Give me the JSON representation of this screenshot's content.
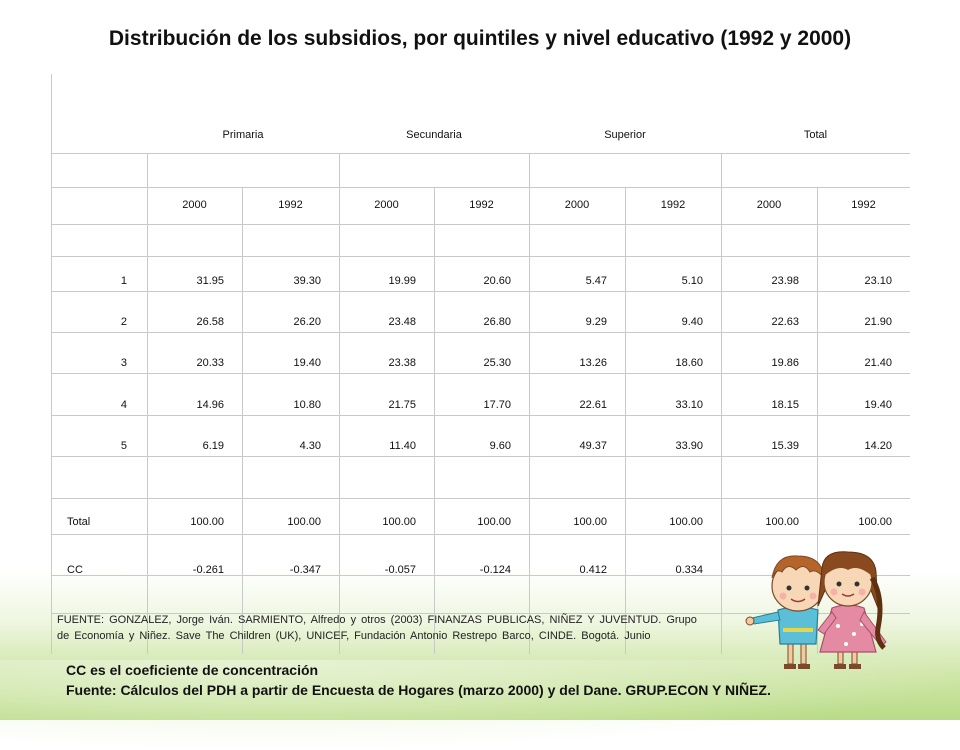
{
  "title": "Distribución de los subsidios, por quintiles y nivel educativo (1992 y 2000)",
  "levels": [
    "Primaria",
    "Secundaria",
    "Superior",
    "Total"
  ],
  "years": [
    "2000",
    "1992",
    "2000",
    "1992",
    "2000",
    "1992",
    "2000",
    "1992"
  ],
  "rows": [
    {
      "label": "1",
      "values": [
        "31.95",
        "39.30",
        "19.99",
        "20.60",
        "5.47",
        "5.10",
        "23.98",
        "23.10"
      ]
    },
    {
      "label": "2",
      "values": [
        "26.58",
        "26.20",
        "23.48",
        "26.80",
        "9.29",
        "9.40",
        "22.63",
        "21.90"
      ]
    },
    {
      "label": "3",
      "values": [
        "20.33",
        "19.40",
        "23.38",
        "25.30",
        "13.26",
        "18.60",
        "19.86",
        "21.40"
      ]
    },
    {
      "label": "4",
      "values": [
        "14.96",
        "10.80",
        "21.75",
        "17.70",
        "22.61",
        "33.10",
        "18.15",
        "19.40"
      ]
    },
    {
      "label": "5",
      "values": [
        "6.19",
        "4.30",
        "11.40",
        "9.60",
        "49.37",
        "33.90",
        "15.39",
        "14.20"
      ]
    },
    {
      "label": "Total",
      "values": [
        "100.00",
        "100.00",
        "100.00",
        "100.00",
        "100.00",
        "100.00",
        "100.00",
        "100.00"
      ]
    },
    {
      "label": "CC",
      "values": [
        "-0.261",
        "-0.347",
        "-0.057",
        "-0.124",
        "0.412",
        "0.334",
        "",
        ""
      ]
    }
  ],
  "source_text": "FUENTE:  GONZALEZ,  Jorge Iván.  SARMIENTO,  Alfredo y otros (2003) FINANZAS  PUBLICAS,  NIÑEZ  Y  JUVENTUD.  Grupo de Economía y Niñez.  Save The  Children (UK),  UNICEF,  Fundación Antonio Restrepo Barco,  CINDE.  Bogotá.  Junio",
  "notes": {
    "cc": "CC es el coeficiente de concentración",
    "fuente": "Fuente: Cálculos del PDH a partir de Encuesta de Hogares (marzo 2000) y del Dane. GRUP.ECON Y NIÑEZ."
  },
  "colors": {
    "grid": "#c9c9c9",
    "background_green": "#b9db86",
    "girl_dress": "#e48aa3",
    "boy_shirt": "#5bbfd8"
  }
}
